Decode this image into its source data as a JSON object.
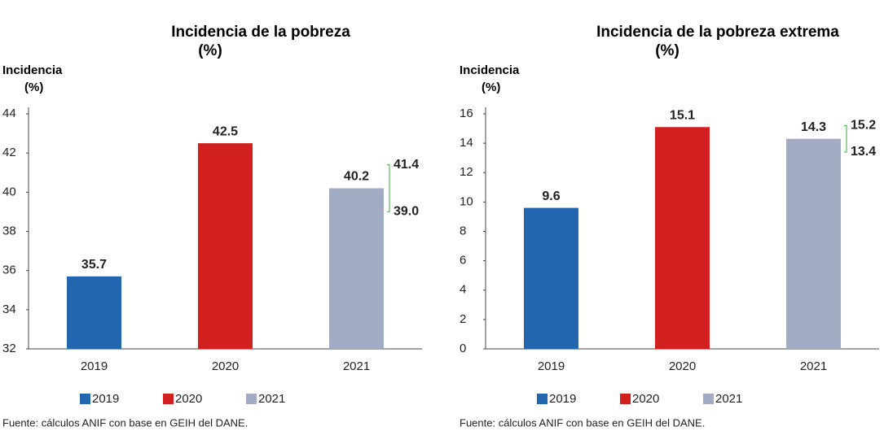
{
  "chart_data": [
    {
      "type": "bar",
      "title": "Incidencia de la pobreza",
      "title_unit": "(%)",
      "y_label": [
        "Incidencia",
        "(%)"
      ],
      "categories": [
        "2019",
        "2020",
        "2021"
      ],
      "series": [
        {
          "name": "2019",
          "color": "#2266b0",
          "values": [
            35.7,
            null,
            null
          ]
        },
        {
          "name": "2020",
          "color": "#d21f1f",
          "values": [
            null,
            42.5,
            null
          ]
        },
        {
          "name": "2021",
          "color": "#a2abc4",
          "values": [
            null,
            null,
            40.2
          ]
        }
      ],
      "interval_values": [
        41.4,
        39.0
      ],
      "interval_labels": [
        "41.4",
        "39.0"
      ],
      "interval_color": "#3aaa35",
      "ylim": [
        32,
        44
      ],
      "yticks": [
        32,
        34,
        36,
        38,
        40,
        42,
        44
      ],
      "grid": false,
      "source": "Fuente: cálculos ANIF con base en GEIH del DANE."
    },
    {
      "type": "bar",
      "title": "Incidencia de la pobreza extrema",
      "title_unit": "(%)",
      "y_label": [
        "Incidencia",
        "(%)"
      ],
      "categories": [
        "2019",
        "2020",
        "2021"
      ],
      "series": [
        {
          "name": "2019",
          "color": "#2266b0",
          "values": [
            9.6,
            null,
            null
          ]
        },
        {
          "name": "2020",
          "color": "#d21f1f",
          "values": [
            null,
            15.1,
            null
          ]
        },
        {
          "name": "2021",
          "color": "#a2abc4",
          "values": [
            null,
            null,
            14.3
          ]
        }
      ],
      "interval_values": [
        15.2,
        13.4
      ],
      "interval_labels": [
        "15.2",
        "13.4"
      ],
      "interval_color": "#3aaa35",
      "ylim": [
        0,
        16
      ],
      "yticks": [
        0,
        2,
        4,
        6,
        8,
        10,
        12,
        14,
        16
      ],
      "grid": false,
      "source": "Fuente: cálculos ANIF con base en GEIH del DANE."
    }
  ]
}
